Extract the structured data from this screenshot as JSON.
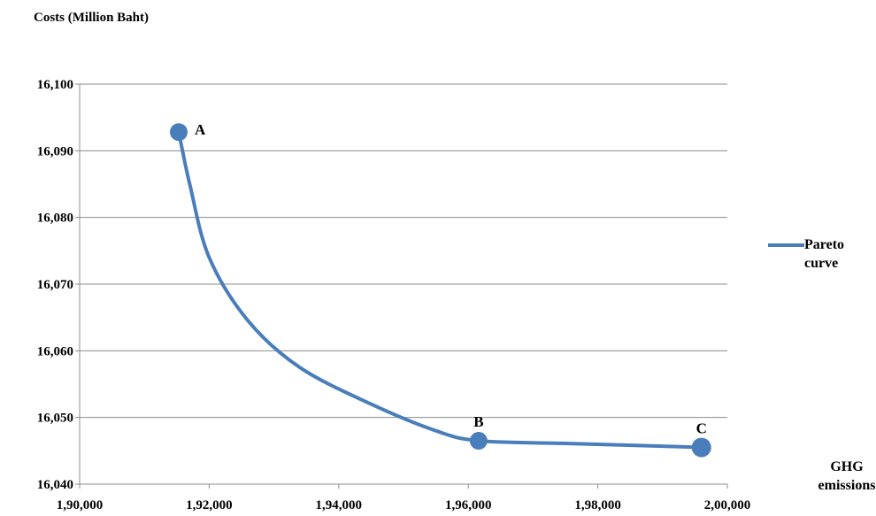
{
  "chart_data": {
    "type": "line",
    "ylabel": "Costs (Million Baht)",
    "xlabel": "GHG emissions",
    "xlim": [
      190000,
      200000
    ],
    "ylim": [
      16040,
      16100
    ],
    "x_ticks": [
      190000,
      192000,
      194000,
      196000,
      198000,
      200000
    ],
    "x_tick_labels": [
      "1,90,000",
      "1,92,000",
      "1,94,000",
      "1,96,000",
      "1,98,000",
      "2,00,000"
    ],
    "y_ticks": [
      16040,
      16050,
      16060,
      16070,
      16080,
      16090,
      16100
    ],
    "y_tick_labels": [
      "16,040",
      "16,050",
      "16,060",
      "16,070",
      "16,080",
      "16,090",
      "16,100"
    ],
    "grid": "horizontal",
    "legend_position": "right",
    "series": [
      {
        "name": "Pareto curve",
        "color": "#4a7ebb",
        "x": [
          191530,
          191700,
          192000,
          192600,
          193400,
          194500,
          195500,
          196160,
          197500,
          199000,
          199600
        ],
        "y": [
          16092.8,
          16085,
          16074,
          16064.5,
          16057.5,
          16052,
          16048,
          16046.5,
          16046.1,
          16045.7,
          16045.5
        ]
      }
    ],
    "points": [
      {
        "label": "A",
        "x": 191530,
        "y": 16092.8
      },
      {
        "label": "B",
        "x": 196160,
        "y": 16046.5
      },
      {
        "label": "C",
        "x": 199600,
        "y": 16045.5
      }
    ]
  }
}
